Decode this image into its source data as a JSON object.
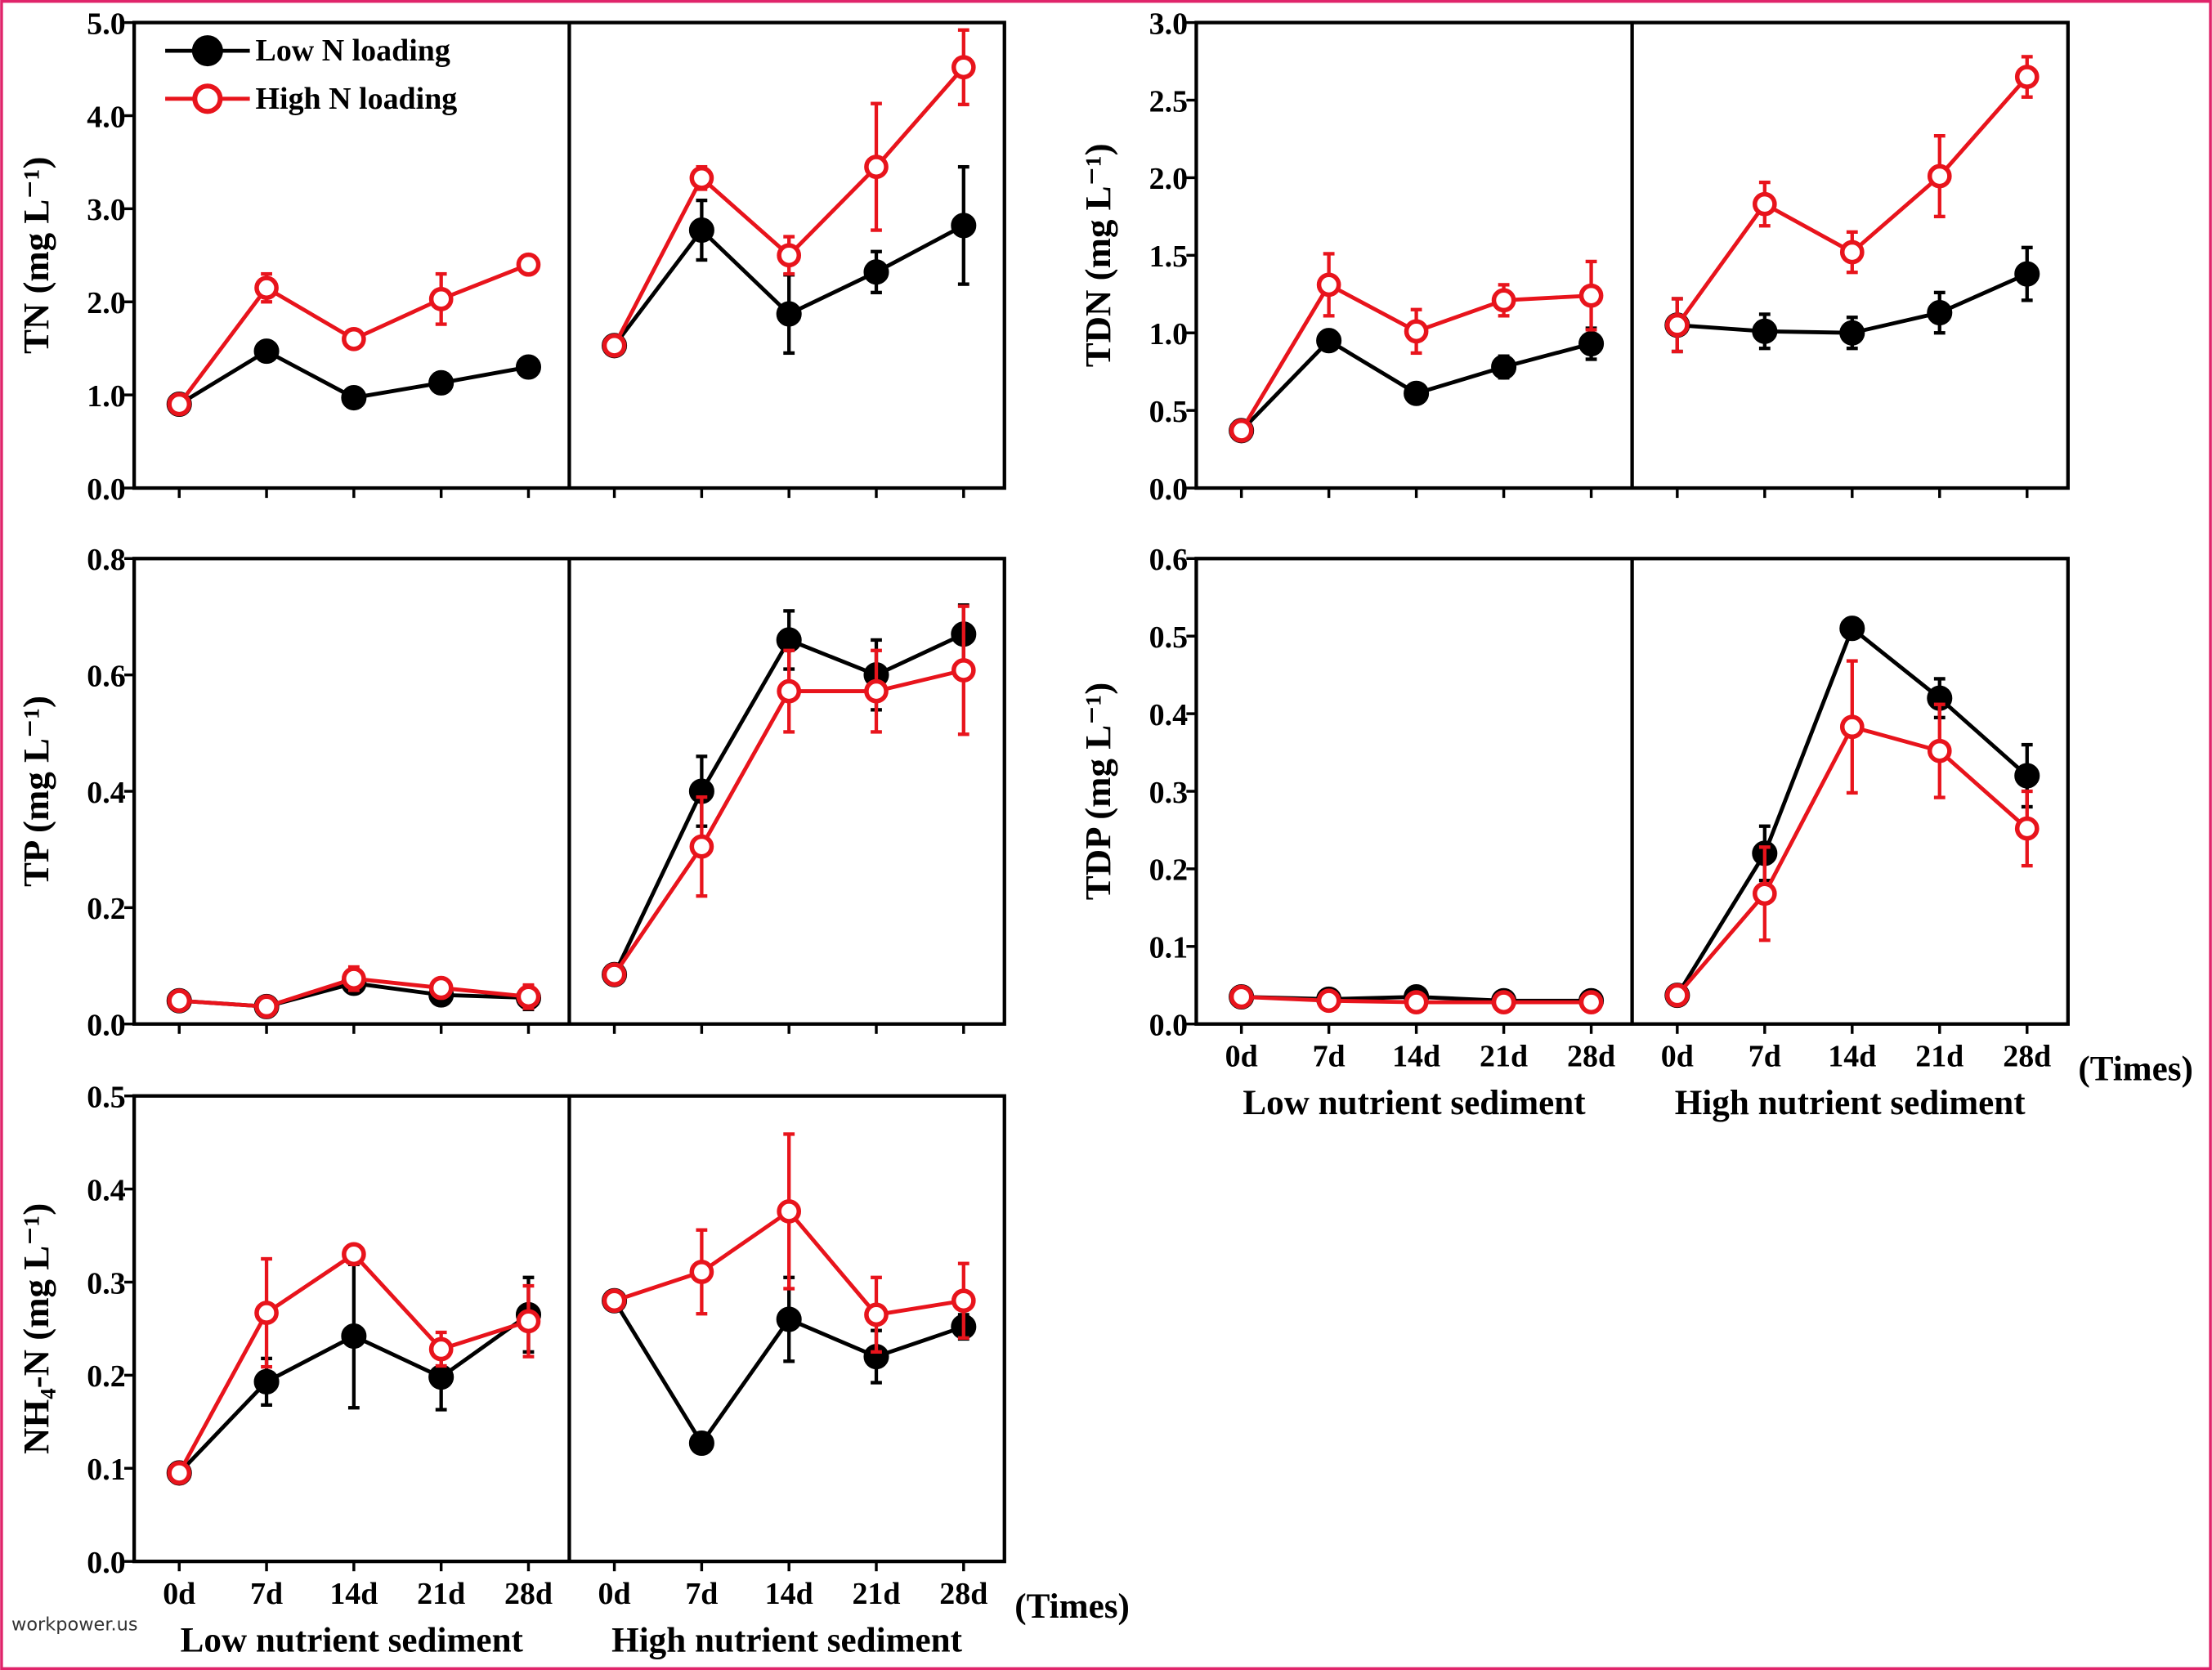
{
  "watermark": "workpower.us",
  "chart_data": [
    {
      "type": "line",
      "ylabel": "TN (mg L⁻¹)",
      "ylim": [
        0,
        5
      ],
      "yticks": [
        {
          "value": 0,
          "label": "0.0"
        },
        {
          "value": 1,
          "label": "1.0"
        },
        {
          "value": 2,
          "label": "2.0"
        },
        {
          "value": 3,
          "label": "3.0"
        },
        {
          "value": 4,
          "label": "4.0"
        },
        {
          "value": 5,
          "label": "5.0"
        }
      ],
      "legend": [
        {
          "name": "Low N loading",
          "color": "#000000"
        },
        {
          "name": "High N loading",
          "color": "#e8141c"
        }
      ],
      "panels": [
        {
          "categories": [
            null,
            null,
            null,
            null,
            null
          ],
          "series": [
            {
              "color": "#000000",
              "values": [
                0.9,
                1.47,
                0.97,
                1.13,
                1.3
              ],
              "errors": [
                0.03,
                0.05,
                0.05,
                0.07,
                0.1
              ]
            },
            {
              "color": "#e8141c",
              "values": [
                0.9,
                2.15,
                1.6,
                2.03,
                2.4
              ],
              "errors": [
                0.03,
                0.15,
                0.05,
                0.27,
                0.05
              ]
            }
          ]
        },
        {
          "categories": [
            null,
            null,
            null,
            null,
            null
          ],
          "series": [
            {
              "color": "#000000",
              "values": [
                1.53,
                2.77,
                1.87,
                2.32,
                2.82
              ],
              "errors": [
                0.03,
                0.32,
                0.42,
                0.22,
                0.63
              ]
            },
            {
              "color": "#e8141c",
              "values": [
                1.53,
                3.33,
                2.5,
                3.45,
                4.52
              ],
              "errors": [
                0.03,
                0.12,
                0.2,
                0.68,
                0.4
              ]
            }
          ]
        }
      ]
    },
    {
      "type": "line",
      "ylabel": "TDN (mg L⁻¹)",
      "ylim": [
        0,
        3
      ],
      "yticks": [
        {
          "value": 0,
          "label": "0.0"
        },
        0.5,
        {
          "value": 1,
          "label": "1.0"
        },
        1.5,
        {
          "value": 2,
          "label": "2.0"
        },
        2.5,
        {
          "value": 3,
          "label": "3.0"
        }
      ],
      "panels": [
        {
          "categories": [
            null,
            null,
            null,
            null,
            null
          ],
          "series": [
            {
              "color": "#000000",
              "values": [
                0.37,
                0.95,
                0.61,
                0.78,
                0.93
              ],
              "errors": [
                0.02,
                0.04,
                0.03,
                0.07,
                0.1
              ]
            },
            {
              "color": "#e8141c",
              "values": [
                0.37,
                1.31,
                1.01,
                1.21,
                1.24
              ],
              "errors": [
                0.02,
                0.2,
                0.14,
                0.1,
                0.22
              ]
            }
          ]
        },
        {
          "categories": [
            null,
            null,
            null,
            null,
            null
          ],
          "series": [
            {
              "color": "#000000",
              "values": [
                1.05,
                1.01,
                1.0,
                1.13,
                1.38
              ],
              "errors": [
                0.17,
                0.11,
                0.1,
                0.13,
                0.17
              ]
            },
            {
              "color": "#e8141c",
              "values": [
                1.05,
                1.83,
                1.52,
                2.01,
                2.65
              ],
              "errors": [
                0.17,
                0.14,
                0.13,
                0.26,
                0.13
              ]
            }
          ]
        }
      ]
    },
    {
      "type": "line",
      "ylabel": "TP (mg L⁻¹)",
      "ylim": [
        0,
        0.8
      ],
      "yticks": [
        {
          "value": 0,
          "label": "0.0"
        },
        0.2,
        0.4,
        0.6,
        0.8
      ],
      "panels": [
        {
          "categories": [
            null,
            null,
            null,
            null,
            null
          ],
          "series": [
            {
              "color": "#000000",
              "values": [
                0.04,
                0.03,
                0.07,
                0.05,
                0.045
              ],
              "errors": [
                0.005,
                0.005,
                0.01,
                0.01,
                0.02
              ]
            },
            {
              "color": "#e8141c",
              "values": [
                0.04,
                0.03,
                0.078,
                0.062,
                0.047
              ],
              "errors": [
                0.005,
                0.005,
                0.02,
                0.01,
                0.02
              ]
            }
          ]
        },
        {
          "categories": [
            null,
            null,
            null,
            null,
            null
          ],
          "series": [
            {
              "color": "#000000",
              "values": [
                0.085,
                0.4,
                0.66,
                0.6,
                0.67
              ],
              "errors": [
                0.005,
                0.06,
                0.05,
                0.06,
                0.05
              ]
            },
            {
              "color": "#e8141c",
              "values": [
                0.085,
                0.305,
                0.572,
                0.572,
                0.608
              ],
              "errors": [
                0.005,
                0.085,
                0.07,
                0.07,
                0.11
              ]
            }
          ]
        }
      ]
    },
    {
      "type": "line",
      "ylabel": "TDP (mg L⁻¹)",
      "ylim": [
        0,
        0.6
      ],
      "times_label": "(Times)",
      "yticks": [
        {
          "value": 0,
          "label": "0.0"
        },
        0.1,
        0.2,
        0.3,
        0.4,
        0.5,
        0.6
      ],
      "panels": [
        {
          "label": "Low nutrient sediment",
          "categories": [
            "0d",
            "7d",
            "14d",
            "21d",
            "28d"
          ],
          "series": [
            {
              "color": "#000000",
              "values": [
                0.035,
                0.032,
                0.035,
                0.03,
                0.03
              ],
              "errors": [
                0.004,
                0.003,
                0.004,
                0.003,
                0.003
              ]
            },
            {
              "color": "#e8141c",
              "values": [
                0.035,
                0.03,
                0.028,
                0.028,
                0.028
              ],
              "errors": [
                0.004,
                0.003,
                0.003,
                0.003,
                0.003
              ]
            }
          ]
        },
        {
          "label": "High nutrient sediment",
          "categories": [
            "0d",
            "7d",
            "14d",
            "21d",
            "28d"
          ],
          "series": [
            {
              "color": "#000000",
              "values": [
                0.037,
                0.22,
                0.51,
                0.42,
                0.32
              ],
              "errors": [
                0.004,
                0.035,
                0.005,
                0.025,
                0.04
              ]
            },
            {
              "color": "#e8141c",
              "values": [
                0.037,
                0.168,
                0.383,
                0.352,
                0.252
              ],
              "errors": [
                0.004,
                0.06,
                0.085,
                0.06,
                0.048
              ]
            }
          ]
        }
      ]
    },
    {
      "type": "line",
      "ylabel": "NH₄-N (mg L⁻¹)",
      "ylim": [
        0,
        0.5
      ],
      "times_label": "(Times)",
      "yticks": [
        {
          "value": 0,
          "label": "0.0"
        },
        0.1,
        0.2,
        0.3,
        0.4,
        0.5
      ],
      "panels": [
        {
          "label": "Low nutrient sediment",
          "categories": [
            "0d",
            "7d",
            "14d",
            "21d",
            "28d"
          ],
          "series": [
            {
              "color": "#000000",
              "values": [
                0.095,
                0.193,
                0.242,
                0.198,
                0.265
              ],
              "errors": [
                0.005,
                0.025,
                0.077,
                0.035,
                0.04
              ]
            },
            {
              "color": "#e8141c",
              "values": [
                0.095,
                0.267,
                0.33,
                0.228,
                0.258
              ],
              "errors": [
                0.005,
                0.058,
                0.005,
                0.018,
                0.038
              ]
            }
          ]
        },
        {
          "label": "High nutrient sediment",
          "categories": [
            "0d",
            "7d",
            "14d",
            "21d",
            "28d"
          ],
          "series": [
            {
              "color": "#000000",
              "values": [
                0.28,
                0.127,
                0.26,
                0.22,
                0.252
              ],
              "errors": [
                0.005,
                0.005,
                0.045,
                0.028,
                0.013
              ]
            },
            {
              "color": "#e8141c",
              "values": [
                0.28,
                0.311,
                0.376,
                0.265,
                0.28
              ],
              "errors": [
                0.005,
                0.045,
                0.083,
                0.04,
                0.04
              ]
            }
          ]
        }
      ]
    }
  ]
}
